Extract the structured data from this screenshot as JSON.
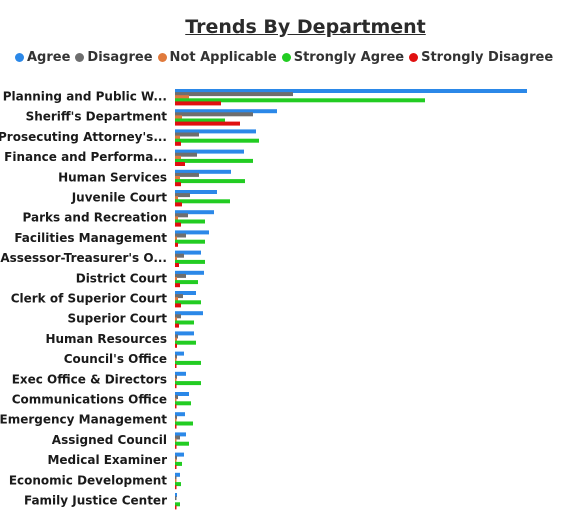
{
  "chart_data": {
    "type": "bar",
    "orientation": "horizontal",
    "title": "Trends By Department",
    "categories": [
      "Planning and Public W...",
      "Sheriff's Department",
      "Prosecuting Attorney's...",
      "Finance and Performa...",
      "Human Services",
      "Juvenile Court",
      "Parks and Recreation",
      "Facilities Management",
      "Assessor-Treasurer's O...",
      "District Court",
      "Clerk of Superior Court",
      "Superior Court",
      "Human Resources",
      "Council's Office",
      "Exec Office & Directors",
      "Communications Office",
      "Emergency Management",
      "Assigned Council",
      "Medical Examiner",
      "Economic Development",
      "Family Justice Center"
    ],
    "series": [
      {
        "name": "Agree",
        "color": "#2b88e8",
        "values": [
          352,
          102,
          81,
          69,
          56,
          42,
          39,
          34,
          26,
          29,
          21,
          28,
          19,
          9,
          11,
          14,
          10,
          11,
          9,
          5,
          2
        ]
      },
      {
        "name": "Disagree",
        "color": "#6e6e6e",
        "values": [
          118,
          78,
          24,
          22,
          24,
          15,
          13,
          11,
          9,
          11,
          8,
          6,
          3,
          2,
          2,
          3,
          2,
          5,
          2,
          1,
          1
        ]
      },
      {
        "name": "Not Applicable",
        "color": "#e07a3c",
        "values": [
          14,
          7,
          5,
          6,
          5,
          3,
          3,
          2,
          2,
          2,
          3,
          2,
          2,
          1,
          1,
          1,
          1,
          1,
          1,
          1,
          0
        ]
      },
      {
        "name": "Strongly Agree",
        "color": "#22cc22",
        "values": [
          250,
          50,
          84,
          78,
          70,
          55,
          30,
          30,
          30,
          23,
          26,
          19,
          21,
          26,
          26,
          16,
          18,
          14,
          7,
          6,
          5
        ]
      },
      {
        "name": "Strongly Disagree",
        "color": "#e01010",
        "values": [
          46,
          65,
          6,
          10,
          6,
          7,
          6,
          3,
          4,
          5,
          6,
          4,
          2,
          1,
          1,
          1,
          1,
          1,
          1,
          1,
          1
        ]
      }
    ],
    "legend_position": "top-left",
    "grid": false,
    "x_axis_visible": false
  }
}
